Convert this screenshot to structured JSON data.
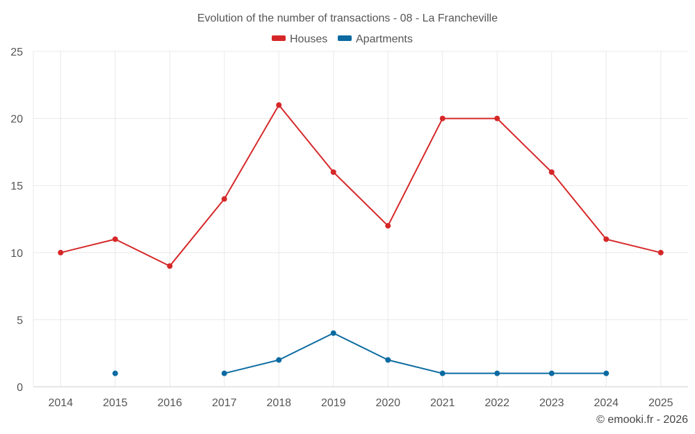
{
  "chart_data": {
    "type": "line",
    "title": "Evolution of the number of transactions - 08 - La Francheville",
    "categories": [
      "2014",
      "2015",
      "2016",
      "2017",
      "2018",
      "2019",
      "2020",
      "2021",
      "2022",
      "2023",
      "2024",
      "2025"
    ],
    "ylim": [
      0,
      25
    ],
    "yticks": [
      0,
      5,
      10,
      15,
      20,
      25
    ],
    "xlabel": "",
    "ylabel": "",
    "grid": true,
    "legend_position": "top-center",
    "series": [
      {
        "name": "Houses",
        "color": "#d62728",
        "values": [
          10,
          11,
          9,
          14,
          21,
          16,
          12,
          20,
          20,
          16,
          11,
          10
        ]
      },
      {
        "name": "Apartments",
        "color": "#0a6aa1",
        "values": [
          null,
          1,
          null,
          1,
          2,
          4,
          2,
          1,
          1,
          1,
          1,
          null
        ]
      }
    ]
  },
  "credit": "© emooki.fr - 2026"
}
